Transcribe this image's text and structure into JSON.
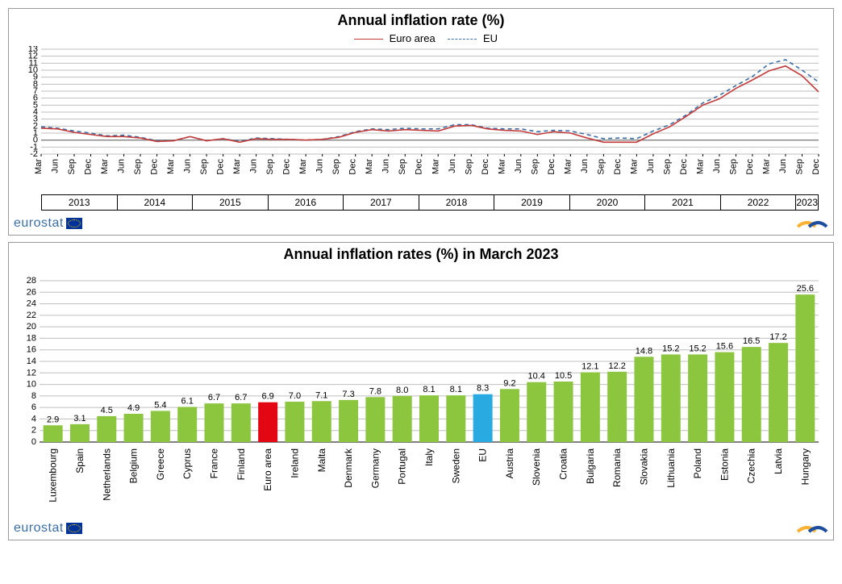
{
  "panel1": {
    "title": "Annual inflation rate (%)",
    "legend": {
      "euro": "Euro area",
      "eu": "EU"
    },
    "ylim": [
      -2,
      13
    ],
    "ytick_step": 1,
    "zero_line_color": "#808080",
    "grid_color": "#bfbfbf",
    "background_color": "#ffffff",
    "title_fontsize": 18,
    "axis_fontsize": 11,
    "months": [
      "Mar",
      "Jun",
      "Sep",
      "Dec"
    ],
    "years": [
      "2013",
      "2014",
      "2015",
      "2016",
      "2017",
      "2018",
      "2019",
      "2020",
      "2021",
      "2022",
      "2023"
    ],
    "last_year_months": [
      "Mar"
    ],
    "series": {
      "euro": {
        "color": "#c33c3c",
        "dash": "none",
        "width": 1.6,
        "values": [
          1.7,
          1.6,
          1.1,
          0.8,
          0.5,
          0.5,
          0.3,
          -0.2,
          -0.1,
          0.5,
          -0.1,
          0.2,
          -0.3,
          0.2,
          0.1,
          0.1,
          0.0,
          0.1,
          0.4,
          1.1,
          1.5,
          1.3,
          1.5,
          1.4,
          1.3,
          2.0,
          2.1,
          1.6,
          1.4,
          1.3,
          0.8,
          1.2,
          1.0,
          0.3,
          -0.3,
          -0.3,
          -0.3,
          0.9,
          1.9,
          3.4,
          5.0,
          5.9,
          7.4,
          8.6,
          9.9,
          10.6,
          9.2,
          6.9
        ]
      },
      "eu": {
        "color": "#3b6ea5",
        "dash": "5,4",
        "width": 1.6,
        "values": [
          1.9,
          1.7,
          1.3,
          1.0,
          0.6,
          0.7,
          0.4,
          -0.1,
          -0.1,
          0.5,
          -0.1,
          0.2,
          -0.2,
          0.3,
          0.2,
          0.1,
          0.0,
          0.1,
          0.5,
          1.2,
          1.6,
          1.5,
          1.7,
          1.6,
          1.6,
          2.2,
          2.2,
          1.7,
          1.6,
          1.6,
          1.2,
          1.4,
          1.3,
          0.8,
          0.2,
          0.3,
          0.2,
          1.3,
          2.2,
          3.6,
          5.3,
          6.4,
          7.8,
          9.1,
          10.9,
          11.5,
          10.0,
          8.3
        ]
      }
    }
  },
  "panel2": {
    "title": "Annual inflation rates (%) in March 2023",
    "ylim": [
      0,
      28
    ],
    "ytick_step": 2,
    "grid_color": "#bfbfbf",
    "background_color": "#ffffff",
    "bar_color": "#8cc63f",
    "euro_color": "#e30613",
    "eu_color": "#29abe2",
    "label_color": "#000000",
    "value_fontsize": 11,
    "axis_fontsize": 11,
    "title_fontsize": 18,
    "countries": [
      {
        "name": "Luxembourg",
        "value": 2.9,
        "kind": "normal"
      },
      {
        "name": "Spain",
        "value": 3.1,
        "kind": "normal"
      },
      {
        "name": "Netherlands",
        "value": 4.5,
        "kind": "normal"
      },
      {
        "name": "Belgium",
        "value": 4.9,
        "kind": "normal"
      },
      {
        "name": "Greece",
        "value": 5.4,
        "kind": "normal"
      },
      {
        "name": "Cyprus",
        "value": 6.1,
        "kind": "normal"
      },
      {
        "name": "France",
        "value": 6.7,
        "kind": "normal"
      },
      {
        "name": "Finland",
        "value": 6.7,
        "kind": "normal"
      },
      {
        "name": "Euro area",
        "value": 6.9,
        "kind": "euro"
      },
      {
        "name": "Ireland",
        "value": 7.0,
        "kind": "normal"
      },
      {
        "name": "Malta",
        "value": 7.1,
        "kind": "normal"
      },
      {
        "name": "Denmark",
        "value": 7.3,
        "kind": "normal"
      },
      {
        "name": "Germany",
        "value": 7.8,
        "kind": "normal"
      },
      {
        "name": "Portugal",
        "value": 8.0,
        "kind": "normal"
      },
      {
        "name": "Italy",
        "value": 8.1,
        "kind": "normal"
      },
      {
        "name": "Sweden",
        "value": 8.1,
        "kind": "normal"
      },
      {
        "name": "EU",
        "value": 8.3,
        "kind": "eu"
      },
      {
        "name": "Austria",
        "value": 9.2,
        "kind": "normal"
      },
      {
        "name": "Slovenia",
        "value": 10.4,
        "kind": "normal"
      },
      {
        "name": "Croatia",
        "value": 10.5,
        "kind": "normal"
      },
      {
        "name": "Bulgaria",
        "value": 12.1,
        "kind": "normal"
      },
      {
        "name": "Romania",
        "value": 12.2,
        "kind": "normal"
      },
      {
        "name": "Slovakia",
        "value": 14.8,
        "kind": "normal"
      },
      {
        "name": "Lithuania",
        "value": 15.2,
        "kind": "normal"
      },
      {
        "name": "Poland",
        "value": 15.2,
        "kind": "normal"
      },
      {
        "name": "Estonia",
        "value": 15.6,
        "kind": "normal"
      },
      {
        "name": "Czechia",
        "value": 16.5,
        "kind": "normal"
      },
      {
        "name": "Latvia",
        "value": 17.2,
        "kind": "normal"
      },
      {
        "name": "Hungary",
        "value": 25.6,
        "kind": "normal"
      }
    ]
  },
  "footer": {
    "brand": "eurostat"
  }
}
